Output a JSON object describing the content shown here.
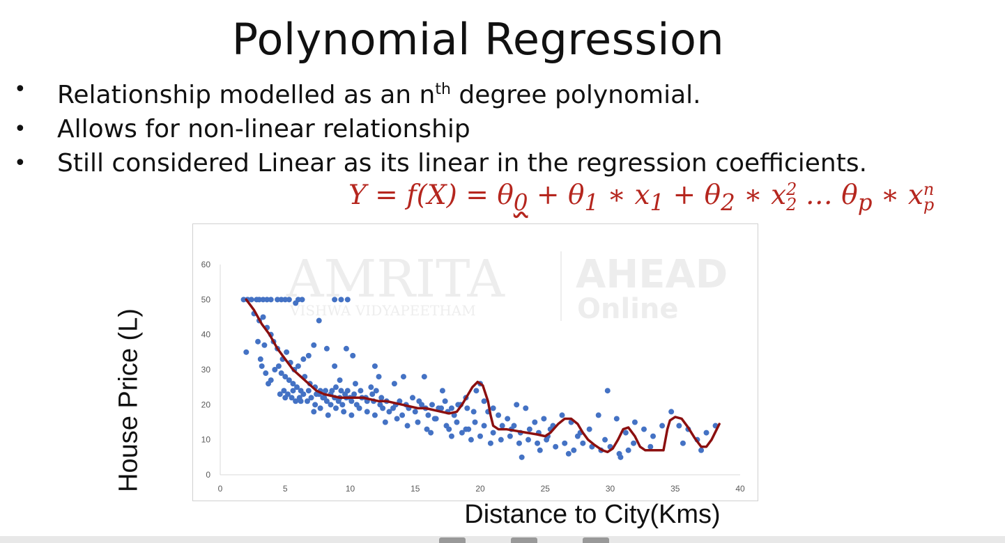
{
  "slide": {
    "title": "Polynomial Regression",
    "bullets": [
      {
        "pre": "Relationship modelled as an n",
        "sup": "th",
        "post": " degree polynomial."
      },
      {
        "pre": "Allows for non-linear relationship",
        "sup": "",
        "post": ""
      },
      {
        "pre": "Still considered Linear as its linear in the regression coefficients.",
        "sup": "",
        "post": ""
      }
    ],
    "bullet_glyph": "•",
    "formula": {
      "lhs": "Y = f(X) = ",
      "t0": "θ",
      "t0_sub": "0",
      "plus1": " + ",
      "t1": "θ",
      "t1_sub": "1",
      "star1": " ∗ ",
      "x1": "x",
      "x1_sub": "1",
      "plus2": " + ",
      "t2": "θ",
      "t2_sub": "2",
      "star2": " ∗ ",
      "x2": "x",
      "x2_sub": "2",
      "x2_sup": "2",
      "dots": " … ",
      "tp": "θ",
      "tp_sub": "p",
      "star3": " ∗ ",
      "xp": "x",
      "xp_sub": "p",
      "xp_sup": "n",
      "color": "#b5261e"
    },
    "watermark": {
      "left": "AMRITA",
      "left_sub": "VISHWA VIDYAPEETHAM",
      "right": "AHEAD",
      "right_sub": "Online"
    }
  },
  "chart_data": {
    "type": "scatter",
    "xlabel": "Distance to City(Kms)",
    "ylabel": "House Price (L)",
    "xlim": [
      0,
      40
    ],
    "ylim": [
      0,
      60
    ],
    "xticks": [
      0,
      5,
      10,
      15,
      20,
      25,
      30,
      35,
      40
    ],
    "yticks": [
      0,
      10,
      20,
      30,
      40,
      50,
      60
    ],
    "grid": false,
    "point_color": "#4472c4",
    "curve_color": "#8b0f0f",
    "points": [
      [
        1.8,
        50
      ],
      [
        2.1,
        50
      ],
      [
        2.4,
        50
      ],
      [
        2.8,
        50
      ],
      [
        3.0,
        50
      ],
      [
        3.3,
        50
      ],
      [
        3.6,
        50
      ],
      [
        3.9,
        50
      ],
      [
        4.4,
        50
      ],
      [
        4.7,
        50
      ],
      [
        5.0,
        50
      ],
      [
        5.3,
        50
      ],
      [
        6.0,
        50
      ],
      [
        6.3,
        50
      ],
      [
        8.8,
        50
      ],
      [
        9.3,
        50
      ],
      [
        9.8,
        50
      ],
      [
        5.8,
        49
      ],
      [
        2.0,
        35
      ],
      [
        2.6,
        46
      ],
      [
        3.0,
        44
      ],
      [
        3.3,
        45
      ],
      [
        3.6,
        42
      ],
      [
        3.9,
        40
      ],
      [
        4.1,
        38
      ],
      [
        3.4,
        37
      ],
      [
        4.4,
        36
      ],
      [
        4.8,
        33
      ],
      [
        5.1,
        35
      ],
      [
        5.4,
        32
      ],
      [
        5.7,
        30
      ],
      [
        6.0,
        31
      ],
      [
        6.4,
        33
      ],
      [
        6.8,
        34
      ],
      [
        7.2,
        37
      ],
      [
        7.6,
        44
      ],
      [
        8.2,
        36
      ],
      [
        8.8,
        31
      ],
      [
        9.2,
        27
      ],
      [
        9.7,
        36
      ],
      [
        10.2,
        34
      ],
      [
        2.9,
        38
      ],
      [
        3.1,
        33
      ],
      [
        3.2,
        31
      ],
      [
        3.5,
        29
      ],
      [
        3.7,
        26
      ],
      [
        3.9,
        27
      ],
      [
        4.2,
        30
      ],
      [
        4.5,
        31
      ],
      [
        4.7,
        29
      ],
      [
        5.0,
        28
      ],
      [
        5.3,
        27
      ],
      [
        5.6,
        26
      ],
      [
        5.9,
        25
      ],
      [
        6.2,
        24
      ],
      [
        6.5,
        28
      ],
      [
        6.9,
        26
      ],
      [
        7.3,
        25
      ],
      [
        7.7,
        24
      ],
      [
        8.1,
        24
      ],
      [
        8.5,
        23
      ],
      [
        8.9,
        25
      ],
      [
        9.3,
        24
      ],
      [
        9.6,
        23
      ],
      [
        10.0,
        22
      ],
      [
        10.4,
        26
      ],
      [
        4.6,
        23
      ],
      [
        4.9,
        24
      ],
      [
        5.2,
        23
      ],
      [
        5.5,
        22
      ],
      [
        5.8,
        21
      ],
      [
        6.1,
        22
      ],
      [
        6.4,
        23
      ],
      [
        6.7,
        21
      ],
      [
        7.0,
        22
      ],
      [
        7.3,
        20
      ],
      [
        7.6,
        23
      ],
      [
        7.9,
        22
      ],
      [
        8.2,
        21
      ],
      [
        8.5,
        20
      ],
      [
        8.8,
        22
      ],
      [
        9.1,
        21
      ],
      [
        9.4,
        20
      ],
      [
        9.7,
        22
      ],
      [
        10.1,
        21
      ],
      [
        10.5,
        20
      ],
      [
        10.9,
        22
      ],
      [
        11.3,
        21
      ],
      [
        11.7,
        23
      ],
      [
        5.0,
        22
      ],
      [
        5.6,
        24
      ],
      [
        6.2,
        21
      ],
      [
        6.8,
        24
      ],
      [
        7.4,
        23
      ],
      [
        8.0,
        22
      ],
      [
        8.6,
        24
      ],
      [
        9.2,
        22
      ],
      [
        9.8,
        24
      ],
      [
        10.3,
        23
      ],
      [
        10.8,
        24
      ],
      [
        11.2,
        22
      ],
      [
        11.6,
        25
      ],
      [
        12.0,
        24
      ],
      [
        12.4,
        22
      ],
      [
        7.2,
        18
      ],
      [
        7.7,
        19
      ],
      [
        8.3,
        17
      ],
      [
        8.9,
        19
      ],
      [
        9.5,
        18
      ],
      [
        10.1,
        17
      ],
      [
        10.7,
        19
      ],
      [
        11.3,
        18
      ],
      [
        11.9,
        17
      ],
      [
        12.5,
        19
      ],
      [
        13.0,
        18
      ],
      [
        13.5,
        20
      ],
      [
        14.0,
        17
      ],
      [
        14.5,
        19
      ],
      [
        15.0,
        18
      ],
      [
        15.5,
        20
      ],
      [
        16.0,
        17
      ],
      [
        16.5,
        16
      ],
      [
        17.0,
        19
      ],
      [
        17.5,
        18
      ],
      [
        18.0,
        17
      ],
      [
        18.5,
        20
      ],
      [
        19.0,
        19
      ],
      [
        19.5,
        18
      ],
      [
        11.8,
        21
      ],
      [
        12.3,
        20
      ],
      [
        12.8,
        21
      ],
      [
        13.3,
        19
      ],
      [
        13.8,
        21
      ],
      [
        14.3,
        20
      ],
      [
        14.8,
        22
      ],
      [
        15.3,
        21
      ],
      [
        15.8,
        19
      ],
      [
        16.3,
        20
      ],
      [
        16.8,
        19
      ],
      [
        17.3,
        21
      ],
      [
        17.8,
        19
      ],
      [
        18.3,
        20
      ],
      [
        12.2,
        28
      ],
      [
        13.4,
        26
      ],
      [
        14.1,
        28
      ],
      [
        15.7,
        28
      ],
      [
        11.9,
        31
      ],
      [
        17.1,
        24
      ],
      [
        18.9,
        22
      ],
      [
        12.7,
        15
      ],
      [
        13.6,
        16
      ],
      [
        14.4,
        14
      ],
      [
        15.2,
        15
      ],
      [
        15.9,
        13
      ],
      [
        16.6,
        16
      ],
      [
        17.4,
        14
      ],
      [
        18.2,
        15
      ],
      [
        18.9,
        13
      ],
      [
        19.6,
        15
      ],
      [
        20.3,
        14
      ],
      [
        21.0,
        12
      ],
      [
        21.7,
        14
      ],
      [
        22.4,
        13
      ],
      [
        23.1,
        12
      ],
      [
        23.8,
        13
      ],
      [
        24.5,
        12
      ],
      [
        25.2,
        11
      ],
      [
        16.2,
        12
      ],
      [
        17.8,
        11
      ],
      [
        18.6,
        12
      ],
      [
        19.3,
        10
      ],
      [
        20.0,
        11
      ],
      [
        20.8,
        9
      ],
      [
        21.6,
        10
      ],
      [
        22.3,
        11
      ],
      [
        23.0,
        9
      ],
      [
        23.7,
        10
      ],
      [
        24.4,
        9
      ],
      [
        25.1,
        10
      ],
      [
        25.8,
        8
      ],
      [
        26.5,
        9
      ],
      [
        27.2,
        7
      ],
      [
        27.9,
        9
      ],
      [
        28.6,
        8
      ],
      [
        29.3,
        7
      ],
      [
        30.0,
        8
      ],
      [
        30.7,
        6
      ],
      [
        31.4,
        7
      ],
      [
        20.6,
        18
      ],
      [
        21.4,
        17
      ],
      [
        22.1,
        16
      ],
      [
        22.8,
        20
      ],
      [
        23.5,
        19
      ],
      [
        24.2,
        15
      ],
      [
        24.9,
        16
      ],
      [
        25.6,
        14
      ],
      [
        26.3,
        17
      ],
      [
        27.0,
        15
      ],
      [
        27.7,
        12
      ],
      [
        28.4,
        13
      ],
      [
        29.1,
        17
      ],
      [
        29.8,
        24
      ],
      [
        30.5,
        16
      ],
      [
        31.2,
        12
      ],
      [
        31.9,
        15
      ],
      [
        32.6,
        13
      ],
      [
        33.3,
        11
      ],
      [
        34.0,
        14
      ],
      [
        34.7,
        18
      ],
      [
        35.3,
        14
      ],
      [
        36.0,
        13
      ],
      [
        36.7,
        10
      ],
      [
        37.4,
        12
      ],
      [
        38.1,
        14
      ],
      [
        20.0,
        26
      ],
      [
        19.7,
        24
      ],
      [
        20.3,
        21
      ],
      [
        21.0,
        19
      ],
      [
        23.2,
        5
      ],
      [
        24.6,
        7
      ],
      [
        26.8,
        6
      ],
      [
        29.6,
        10
      ],
      [
        30.8,
        5
      ],
      [
        33.1,
        8
      ],
      [
        35.6,
        9
      ],
      [
        37.0,
        7
      ],
      [
        31.8,
        9
      ],
      [
        27.5,
        11
      ],
      [
        25.4,
        13
      ],
      [
        22.6,
        14
      ],
      [
        19.1,
        13
      ],
      [
        17.6,
        13
      ]
    ],
    "curve": [
      [
        2.0,
        50
      ],
      [
        2.6,
        47
      ],
      [
        3.2,
        43
      ],
      [
        3.8,
        40
      ],
      [
        4.4,
        36
      ],
      [
        5.0,
        33
      ],
      [
        5.6,
        30
      ],
      [
        6.2,
        28
      ],
      [
        6.8,
        26
      ],
      [
        7.4,
        24
      ],
      [
        8.0,
        23
      ],
      [
        8.6,
        22.5
      ],
      [
        9.2,
        22
      ],
      [
        9.8,
        22
      ],
      [
        10.4,
        22
      ],
      [
        11.0,
        22
      ],
      [
        11.6,
        21.5
      ],
      [
        12.2,
        21
      ],
      [
        12.8,
        21
      ],
      [
        13.4,
        20.5
      ],
      [
        14.0,
        20
      ],
      [
        14.6,
        19.5
      ],
      [
        15.2,
        19
      ],
      [
        15.8,
        19
      ],
      [
        16.4,
        18.5
      ],
      [
        17.0,
        18
      ],
      [
        17.6,
        17.5
      ],
      [
        18.2,
        18
      ],
      [
        18.6,
        20
      ],
      [
        19.0,
        22.5
      ],
      [
        19.4,
        25
      ],
      [
        19.8,
        26.5
      ],
      [
        20.2,
        25.5
      ],
      [
        20.6,
        21
      ],
      [
        20.8,
        17
      ],
      [
        21.0,
        14
      ],
      [
        21.4,
        13
      ],
      [
        22.0,
        13
      ],
      [
        22.8,
        12.5
      ],
      [
        23.6,
        12
      ],
      [
        24.4,
        11.5
      ],
      [
        25.0,
        11
      ],
      [
        25.4,
        12
      ],
      [
        26.0,
        14.5
      ],
      [
        26.5,
        16
      ],
      [
        27.0,
        16
      ],
      [
        27.5,
        14.5
      ],
      [
        27.9,
        12
      ],
      [
        28.3,
        10
      ],
      [
        28.8,
        8.5
      ],
      [
        29.4,
        7
      ],
      [
        29.8,
        6.5
      ],
      [
        30.2,
        7.5
      ],
      [
        30.6,
        10
      ],
      [
        31.0,
        13
      ],
      [
        31.4,
        13.5
      ],
      [
        31.9,
        11
      ],
      [
        32.3,
        8
      ],
      [
        32.7,
        7
      ],
      [
        33.3,
        7
      ],
      [
        34.1,
        7
      ],
      [
        34.2,
        9
      ],
      [
        34.4,
        13
      ],
      [
        34.6,
        15.5
      ],
      [
        35.0,
        16.5
      ],
      [
        35.5,
        16
      ],
      [
        36.0,
        13.5
      ],
      [
        36.5,
        10.5
      ],
      [
        37.0,
        8
      ],
      [
        37.4,
        8
      ],
      [
        37.8,
        10
      ],
      [
        38.2,
        13
      ],
      [
        38.4,
        14.5
      ]
    ]
  }
}
